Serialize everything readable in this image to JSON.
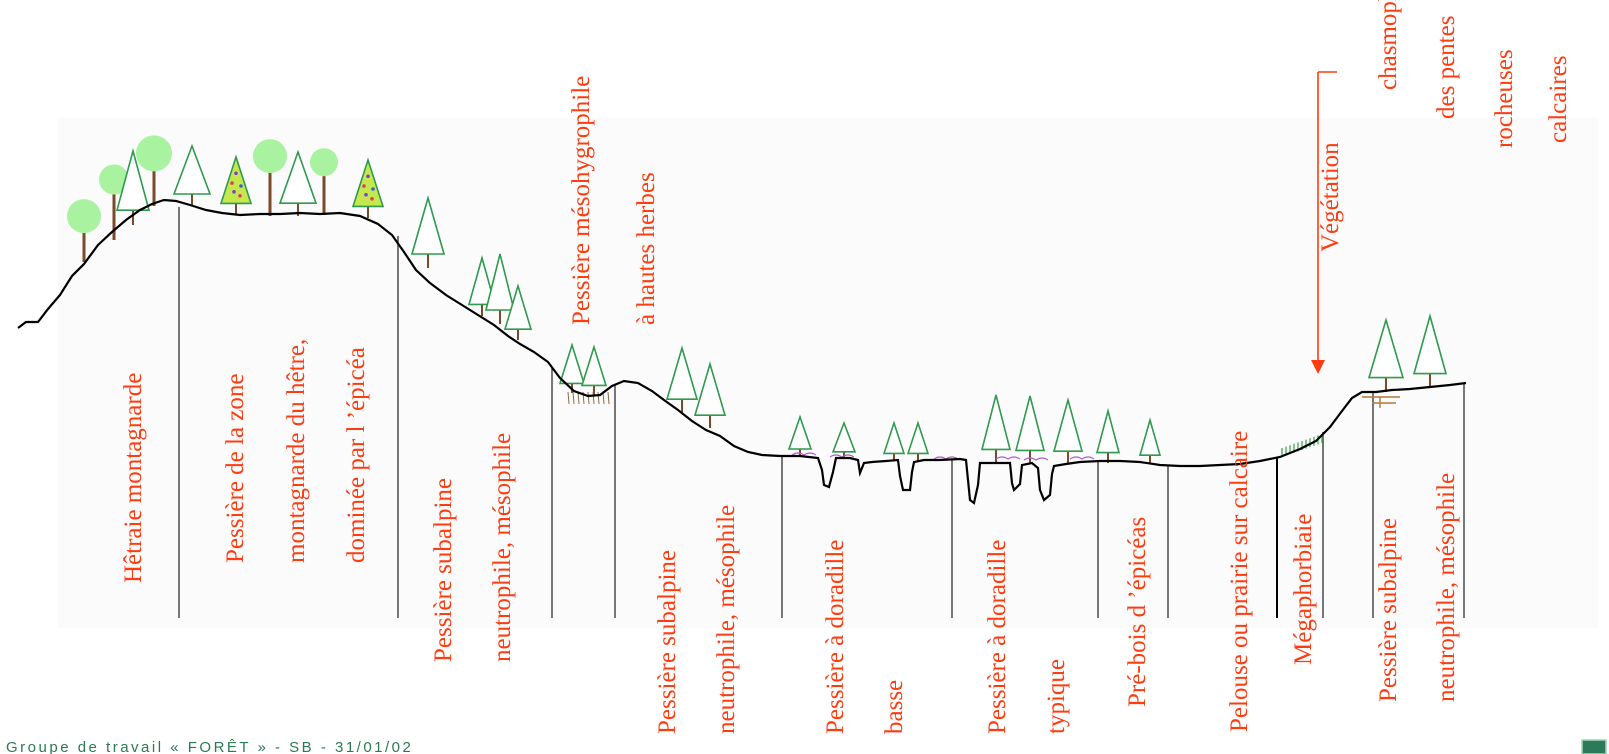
{
  "colors": {
    "label": "#ff3b10",
    "profile": "#000000",
    "divider": "#555555",
    "conifer_stroke": "#2e9a4e",
    "broadleaf_crown": "#a8f2a0",
    "trunk": "#7a4a2a",
    "footer": "#2a7a55"
  },
  "zones": [
    {
      "lines": [
        "Hêtraie montagnarde"
      ]
    },
    {
      "lines": [
        "Pessière de la zone",
        "montagnarde du hêtre,",
        "dominée par l ’épicéa"
      ]
    },
    {
      "lines": [
        "Pessière subalpine",
        "neutrophile, mésophile"
      ]
    },
    {
      "lines": [
        "Pessière mésohygrophile",
        "à hautes herbes"
      ]
    },
    {
      "lines": [
        "Pessière subalpine",
        "neutrophile, mésophile"
      ]
    },
    {
      "lines": [
        "Pessière à doradille",
        "basse"
      ]
    },
    {
      "lines": [
        "Pessière à doradille",
        "typique"
      ]
    },
    {
      "lines": [
        "Pré-bois d ’épicéas"
      ]
    },
    {
      "lines": [
        "Pelouse ou prairie sur calcaire"
      ]
    },
    {
      "lines": [
        "Mégaphorbiaie"
      ]
    },
    {
      "lines": [
        "Pessière subalpine",
        "neutrophile, mésophile"
      ]
    },
    {
      "lines": [
        "Végétation",
        "chasmophytique",
        "des pentes",
        "rocheuses",
        "calcaires"
      ]
    }
  ],
  "footer": "Groupe de travail « FORÊT » - SB - 31/01/02"
}
